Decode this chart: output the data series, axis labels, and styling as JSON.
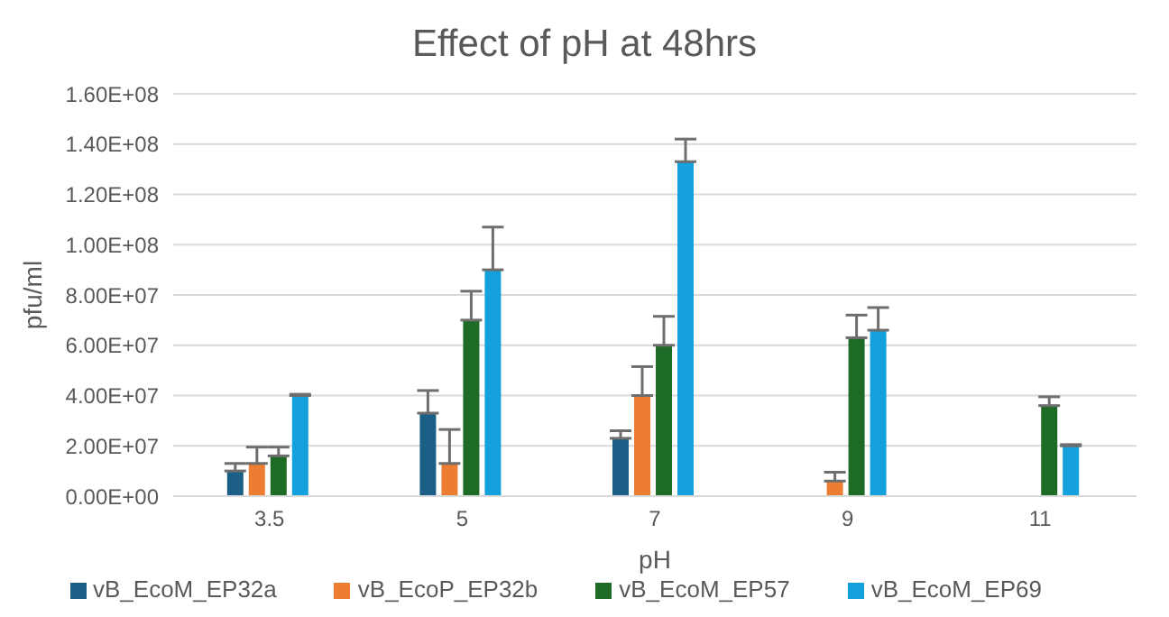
{
  "chart_data": {
    "type": "bar",
    "title": "Effect of pH at 48hrs",
    "xlabel": "pH",
    "ylabel": "pfu/ml",
    "categories": [
      "3.5",
      "5",
      "7",
      "9",
      "11"
    ],
    "series": [
      {
        "name": "vB_EcoM_EP32a",
        "color": "#1b5e86",
        "values": [
          10000000,
          33000000,
          23000000,
          0,
          0
        ],
        "errors": [
          [
            10000000,
            13000000
          ],
          [
            33000000,
            42000000
          ],
          [
            23000000,
            26000000
          ],
          null,
          null
        ]
      },
      {
        "name": "vB_EcoP_EP32b",
        "color": "#ed7d31",
        "values": [
          13000000,
          13000000,
          40000000,
          6000000,
          0
        ],
        "errors": [
          [
            13000000,
            19500000
          ],
          [
            13000000,
            26500000
          ],
          [
            40000000,
            51500000
          ],
          [
            6000000,
            9500000
          ],
          null
        ]
      },
      {
        "name": "vB_EcoM_EP57",
        "color": "#1e6b26",
        "values": [
          16000000,
          70000000,
          60000000,
          63000000,
          36000000
        ],
        "errors": [
          [
            16000000,
            19500000
          ],
          [
            70000000,
            81500000
          ],
          [
            60000000,
            71500000
          ],
          [
            63000000,
            72000000
          ],
          [
            36000000,
            39500000
          ]
        ]
      },
      {
        "name": "vB_EcoM_EP69",
        "color": "#14a0dc",
        "values": [
          40000000,
          90000000,
          133000000,
          66000000,
          20000000
        ],
        "errors": [
          [
            40000000,
            40500000
          ],
          [
            90000000,
            107000000
          ],
          [
            133000000,
            142000000
          ],
          [
            66000000,
            75000000
          ],
          [
            20000000,
            20500000
          ]
        ]
      }
    ],
    "ylim": [
      0,
      160000000
    ],
    "yticks": [
      {
        "value": 0,
        "label": "0.00E+00"
      },
      {
        "value": 20000000,
        "label": "2.00E+07"
      },
      {
        "value": 40000000,
        "label": "4.00E+07"
      },
      {
        "value": 60000000,
        "label": "6.00E+07"
      },
      {
        "value": 80000000,
        "label": "8.00E+07"
      },
      {
        "value": 100000000,
        "label": "1.00E+08"
      },
      {
        "value": 120000000,
        "label": "1.20E+08"
      },
      {
        "value": 140000000,
        "label": "1.40E+08"
      },
      {
        "value": 160000000,
        "label": "1.60E+08"
      }
    ],
    "grid": "y",
    "legend": "bottom"
  }
}
